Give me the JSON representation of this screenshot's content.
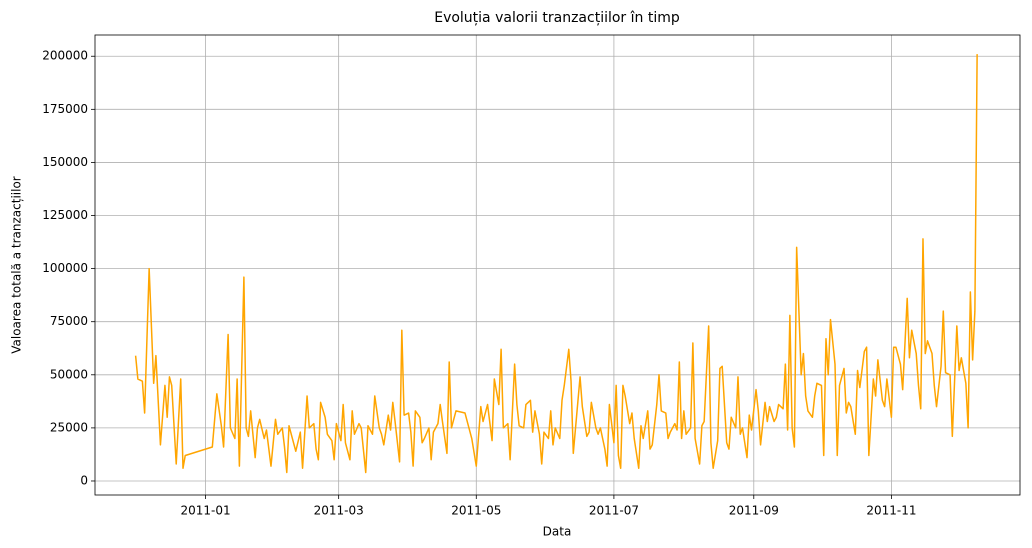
{
  "chart_data": {
    "type": "line",
    "title": "Evoluția valorii tranzacțiilor în timp",
    "x_label": "Data",
    "y_label": "Valoarea totală a tranzacțiilor",
    "grid": true,
    "xlim": [
      14926,
      15336
    ],
    "ylim": [
      -6600,
      210000
    ],
    "xticks": [
      {
        "value": 14975,
        "label": "2011-01"
      },
      {
        "value": 15034,
        "label": "2011-03"
      },
      {
        "value": 15095,
        "label": "2011-05"
      },
      {
        "value": 15156,
        "label": "2011-07"
      },
      {
        "value": 15218,
        "label": "2011-09"
      },
      {
        "value": 15279,
        "label": "2011-11"
      }
    ],
    "yticks": [
      0,
      25000,
      50000,
      75000,
      100000,
      125000,
      150000,
      175000,
      200000
    ],
    "x": [
      14944,
      14945,
      14947,
      14948,
      14950,
      14952,
      14953,
      14955,
      14957,
      14958,
      14959,
      14960,
      14962,
      14964,
      14965,
      14966,
      14978,
      14980,
      14982,
      14983,
      14985,
      14986,
      14988,
      14989,
      14990,
      14992,
      14993,
      14994,
      14995,
      14997,
      14998,
      14999,
      15001,
      15002,
      15004,
      15006,
      15007,
      15009,
      15010,
      15011,
      15012,
      15014,
      15015,
      15017,
      15018,
      15020,
      15021,
      15023,
      15024,
      15025,
      15026,
      15028,
      15029,
      15031,
      15032,
      15033,
      15035,
      15036,
      15037,
      15039,
      15040,
      15041,
      15043,
      15044,
      15046,
      15047,
      15049,
      15050,
      15052,
      15053,
      15054,
      15056,
      15057,
      15058,
      15059,
      15061,
      15062,
      15063,
      15065,
      15066,
      15067,
      15068,
      15070,
      15071,
      15072,
      15074,
      15075,
      15076,
      15078,
      15079,
      15080,
      15082,
      15083,
      15084,
      15086,
      15090,
      15093,
      15095,
      15097,
      15098,
      15100,
      15102,
      15103,
      15105,
      15106,
      15107,
      15109,
      15110,
      15112,
      15113,
      15114,
      15116,
      15117,
      15119,
      15120,
      15121,
      15123,
      15124,
      15125,
      15127,
      15128,
      15129,
      15130,
      15132,
      15133,
      15134,
      15136,
      15137,
      15138,
      15140,
      15141,
      15142,
      15144,
      15145,
      15146,
      15148,
      15149,
      15150,
      15152,
      15153,
      15154,
      15156,
      15157,
      15158,
      15159,
      15160,
      15161,
      15163,
      15164,
      15165,
      15167,
      15168,
      15169,
      15171,
      15172,
      15173,
      15175,
      15176,
      15177,
      15179,
      15180,
      15181,
      15183,
      15184,
      15185,
      15186,
      15187,
      15188,
      15190,
      15191,
      15192,
      15194,
      15195,
      15196,
      15198,
      15199,
      15200,
      15202,
      15203,
      15204,
      15206,
      15207,
      15208,
      15210,
      15211,
      15212,
      15213,
      15215,
      15216,
      15217,
      15219,
      15220,
      15221,
      15223,
      15224,
      15225,
      15227,
      15228,
      15229,
      15231,
      15232,
      15233,
      15234,
      15235,
      15236,
      15237,
      15239,
      15240,
      15241,
      15242,
      15244,
      15245,
      15246,
      15248,
      15249,
      15250,
      15251,
      15252,
      15254,
      15255,
      15256,
      15258,
      15259,
      15260,
      15261,
      15263,
      15264,
      15265,
      15267,
      15268,
      15269,
      15271,
      15272,
      15273,
      15275,
      15276,
      15277,
      15279,
      15280,
      15281,
      15283,
      15284,
      15286,
      15287,
      15288,
      15290,
      15291,
      15292,
      15293,
      15294,
      15295,
      15297,
      15298,
      15299,
      15301,
      15302,
      15303,
      15305,
      15306,
      15308,
      15309,
      15310,
      15312,
      15313,
      15314,
      15315,
      15316,
      15317
    ],
    "series": [
      {
        "color": "#ffa500",
        "values": [
          59000,
          48000,
          47000,
          32000,
          100000,
          46000,
          59000,
          17000,
          45000,
          30000,
          49000,
          45000,
          8000,
          48000,
          6000,
          12000,
          16000,
          41000,
          26000,
          16000,
          69000,
          25000,
          20000,
          48000,
          7000,
          96000,
          25000,
          21000,
          33000,
          11000,
          25000,
          29000,
          20000,
          24000,
          7000,
          29000,
          22000,
          25000,
          16000,
          4000,
          26000,
          18000,
          14000,
          23000,
          6000,
          40000,
          25000,
          27000,
          15000,
          10000,
          37000,
          30000,
          22000,
          19000,
          10000,
          27000,
          19000,
          36000,
          18000,
          10000,
          33000,
          22000,
          27000,
          25000,
          4000,
          26000,
          22000,
          40000,
          25000,
          22000,
          17000,
          31000,
          24000,
          37000,
          28000,
          9000,
          71000,
          31000,
          32000,
          23000,
          7000,
          33000,
          30000,
          18000,
          20000,
          25000,
          10000,
          23000,
          27000,
          36000,
          28000,
          13000,
          56000,
          25000,
          33000,
          32000,
          20000,
          7000,
          35000,
          28000,
          36000,
          19000,
          48000,
          36000,
          62000,
          25000,
          27000,
          10000,
          55000,
          36000,
          26000,
          25000,
          36000,
          38000,
          23000,
          33000,
          22000,
          8000,
          23000,
          20000,
          33000,
          17000,
          25000,
          20000,
          38000,
          45000,
          62000,
          47000,
          13000,
          37000,
          49000,
          35000,
          21000,
          23000,
          37000,
          25000,
          22000,
          25000,
          15000,
          7000,
          36000,
          18000,
          45000,
          12000,
          6000,
          45000,
          40000,
          27000,
          32000,
          20000,
          6000,
          26000,
          20000,
          33000,
          15000,
          17000,
          36000,
          50000,
          33000,
          32000,
          20000,
          23000,
          27000,
          24000,
          56000,
          20000,
          33000,
          22000,
          25000,
          65000,
          20000,
          8000,
          26000,
          28000,
          73000,
          18000,
          6000,
          19000,
          53000,
          54000,
          18000,
          15000,
          30000,
          25000,
          49000,
          22000,
          25000,
          11000,
          31000,
          24000,
          43000,
          33000,
          17000,
          37000,
          28000,
          35000,
          28000,
          30000,
          36000,
          34000,
          55000,
          24000,
          78000,
          25000,
          16000,
          110000,
          50000,
          60000,
          40000,
          33000,
          30000,
          40000,
          46000,
          45000,
          12000,
          67000,
          50000,
          76000,
          55000,
          12000,
          45000,
          53000,
          32000,
          37000,
          35000,
          22000,
          52000,
          44000,
          61000,
          63000,
          12000,
          48000,
          40000,
          57000,
          38000,
          35000,
          48000,
          30000,
          63000,
          63000,
          55000,
          43000,
          86000,
          58000,
          71000,
          60000,
          45000,
          34000,
          114000,
          60000,
          66000,
          60000,
          45000,
          35000,
          54000,
          80000,
          51000,
          50000,
          21000,
          73000,
          52000,
          58000,
          46000,
          25000,
          89000,
          57000,
          80000,
          201000
        ]
      }
    ]
  }
}
